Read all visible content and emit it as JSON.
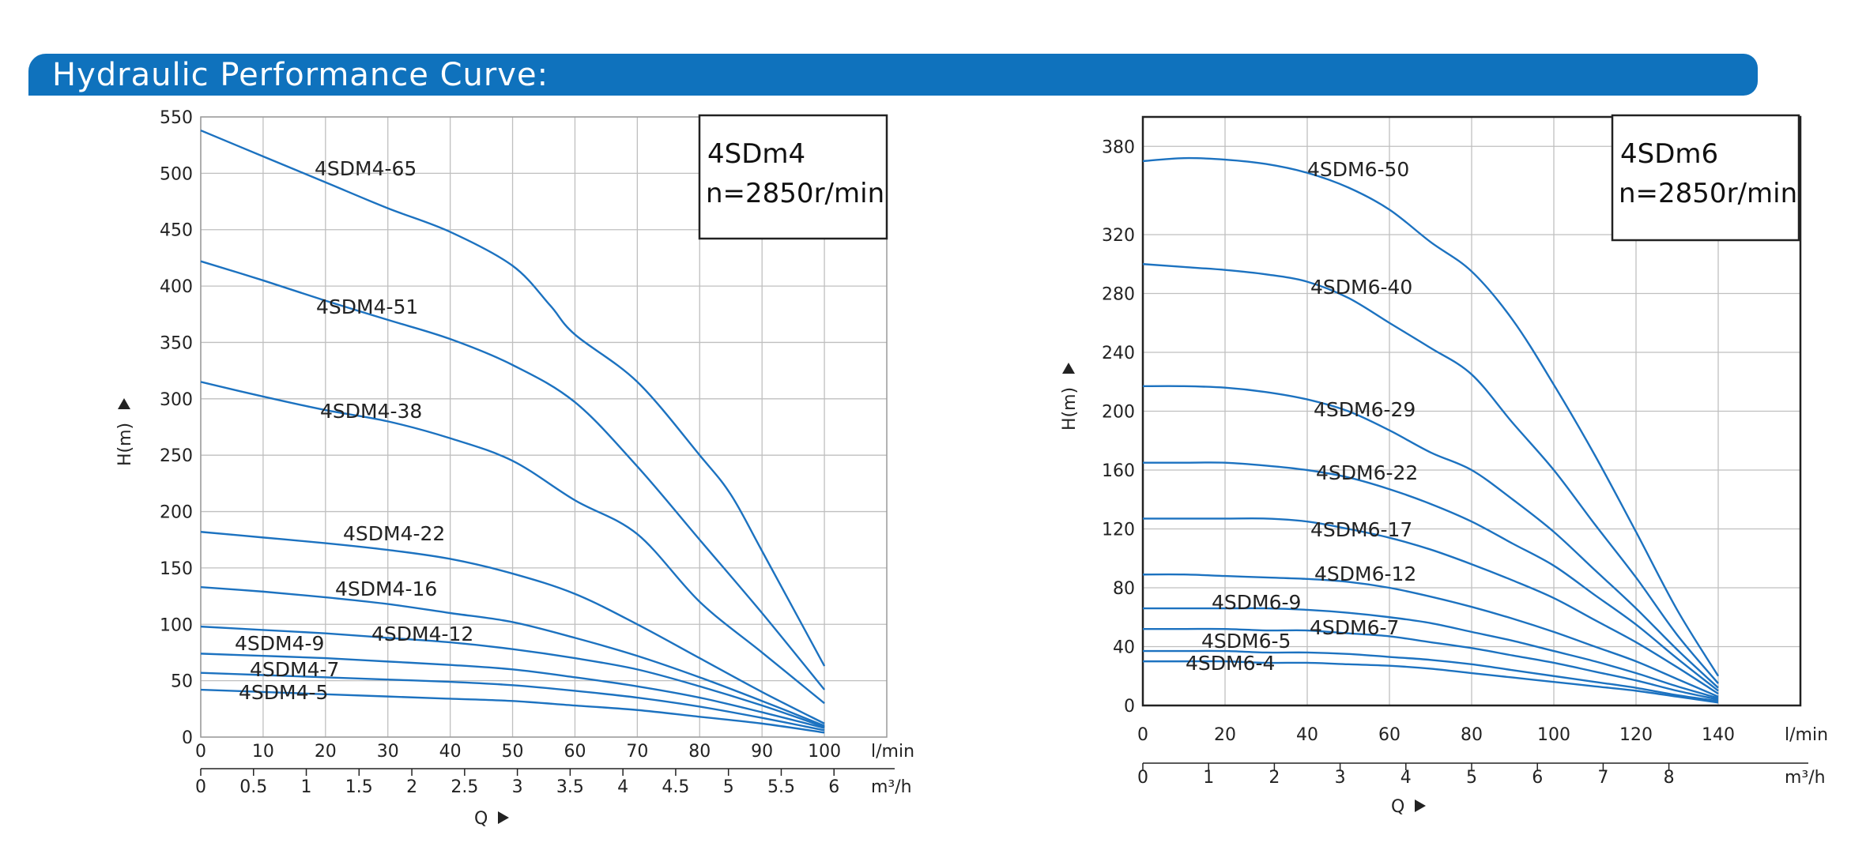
{
  "header": {
    "title": "Hydraulic Performance Curve:"
  },
  "colors": {
    "banner": "#0f72bd",
    "curve": "#1c72c0",
    "grid": "#bfbfbf",
    "frame": "#222222"
  },
  "chart_data": [
    {
      "type": "line",
      "title": "4SDm4",
      "subtitle": "n=2850r/min",
      "xlabel": "Q",
      "ylabel": "H(m)",
      "x_unit": "l/min",
      "x2_unit": "m³/h",
      "xlim": [
        0,
        110
      ],
      "ylim": [
        0,
        550
      ],
      "x_ticks": [
        "0",
        "10",
        "20",
        "30",
        "40",
        "50",
        "60",
        "70",
        "80",
        "90",
        "100"
      ],
      "x2_ticks": [
        "0",
        "0.5",
        "1",
        "1.5",
        "2",
        "2.5",
        "3",
        "3.5",
        "4",
        "4.5",
        "5",
        "5.5",
        "6"
      ],
      "y_ticks": [
        "0",
        "50",
        "100",
        "150",
        "200",
        "250",
        "300",
        "350",
        "400",
        "450",
        "500",
        "550"
      ],
      "grid": true,
      "series": [
        {
          "name": "4SDM4-65",
          "x": [
            0,
            10,
            20,
            30,
            40,
            50,
            56,
            60,
            70,
            80,
            85,
            90,
            100
          ],
          "y": [
            538,
            515,
            492,
            469,
            448,
            418,
            383,
            357,
            315,
            250,
            215,
            165,
            63
          ]
        },
        {
          "name": "4SDM4-51",
          "x": [
            0,
            10,
            20,
            30,
            40,
            50,
            60,
            70,
            80,
            90,
            100
          ],
          "y": [
            422,
            405,
            387,
            370,
            353,
            330,
            297,
            240,
            175,
            110,
            42
          ]
        },
        {
          "name": "4SDM4-38",
          "x": [
            0,
            10,
            20,
            30,
            40,
            50,
            60,
            70,
            80,
            90,
            100
          ],
          "y": [
            315,
            302,
            290,
            280,
            265,
            245,
            210,
            180,
            120,
            75,
            30
          ]
        },
        {
          "name": "4SDM4-22",
          "x": [
            0,
            10,
            20,
            30,
            40,
            50,
            60,
            70,
            80,
            90,
            100
          ],
          "y": [
            182,
            177,
            172,
            166,
            158,
            145,
            127,
            100,
            70,
            40,
            12
          ]
        },
        {
          "name": "4SDM4-16",
          "x": [
            0,
            10,
            20,
            30,
            40,
            50,
            60,
            70,
            80,
            90,
            100
          ],
          "y": [
            133,
            129,
            124,
            118,
            110,
            102,
            88,
            72,
            53,
            32,
            10
          ]
        },
        {
          "name": "4SDM4-12",
          "x": [
            0,
            10,
            20,
            30,
            40,
            50,
            60,
            70,
            80,
            90,
            100
          ],
          "y": [
            98,
            95,
            92,
            88,
            84,
            78,
            70,
            60,
            45,
            28,
            9
          ]
        },
        {
          "name": "4SDM4-9",
          "x": [
            0,
            10,
            20,
            30,
            40,
            50,
            60,
            70,
            80,
            90,
            100
          ],
          "y": [
            74,
            72,
            70,
            67,
            64,
            60,
            53,
            45,
            35,
            22,
            8
          ]
        },
        {
          "name": "4SDM4-7",
          "x": [
            0,
            10,
            20,
            30,
            40,
            50,
            60,
            70,
            80,
            90,
            100
          ],
          "y": [
            57,
            55,
            53,
            51,
            49,
            46,
            41,
            35,
            27,
            17,
            6
          ]
        },
        {
          "name": "4SDM4-5",
          "x": [
            0,
            10,
            20,
            30,
            40,
            50,
            60,
            70,
            80,
            90,
            100
          ],
          "y": [
            42,
            40,
            38,
            36,
            34,
            32,
            28,
            24,
            18,
            12,
            4
          ]
        }
      ]
    },
    {
      "type": "line",
      "title": "4SDm6",
      "subtitle": "n=2850r/min",
      "xlabel": "Q",
      "ylabel": "H(m)",
      "x_unit": "l/min",
      "x2_unit": "m³/h",
      "xlim": [
        0,
        160
      ],
      "ylim": [
        0,
        400
      ],
      "x_ticks": [
        "0",
        "20",
        "40",
        "60",
        "80",
        "100",
        "120",
        "140"
      ],
      "x2_ticks": [
        "0",
        "1",
        "2",
        "3",
        "4",
        "5",
        "6",
        "7",
        "8"
      ],
      "y_ticks": [
        "0",
        "40",
        "80",
        "120",
        "160",
        "200",
        "240",
        "280",
        "320",
        "380"
      ],
      "grid": true,
      "series": [
        {
          "name": "4SDM6-50",
          "x": [
            0,
            10,
            20,
            30,
            40,
            50,
            60,
            70,
            80,
            90,
            100,
            110,
            120,
            130,
            140
          ],
          "y": [
            370,
            372,
            371,
            368,
            362,
            352,
            337,
            315,
            295,
            262,
            218,
            170,
            118,
            65,
            20
          ]
        },
        {
          "name": "4SDM6-40",
          "x": [
            0,
            10,
            20,
            30,
            40,
            50,
            60,
            70,
            80,
            90,
            100,
            110,
            120,
            130,
            140
          ],
          "y": [
            300,
            298,
            296,
            293,
            288,
            277,
            260,
            243,
            225,
            192,
            160,
            123,
            87,
            48,
            15
          ]
        },
        {
          "name": "4SDM6-29",
          "x": [
            0,
            10,
            20,
            30,
            40,
            50,
            60,
            70,
            80,
            90,
            100,
            110,
            120,
            130,
            140
          ],
          "y": [
            217,
            217,
            216,
            213,
            208,
            200,
            187,
            172,
            160,
            140,
            118,
            92,
            66,
            38,
            12
          ]
        },
        {
          "name": "4SDM6-22",
          "x": [
            0,
            10,
            20,
            30,
            40,
            50,
            60,
            70,
            80,
            90,
            100,
            110,
            120,
            130,
            140
          ],
          "y": [
            165,
            165,
            165,
            163,
            160,
            155,
            147,
            137,
            125,
            110,
            95,
            75,
            55,
            32,
            10
          ]
        },
        {
          "name": "4SDM6-17",
          "x": [
            0,
            10,
            20,
            30,
            40,
            50,
            60,
            70,
            80,
            90,
            100,
            110,
            120,
            130,
            140
          ],
          "y": [
            127,
            127,
            127,
            127,
            125,
            120,
            114,
            106,
            96,
            85,
            73,
            58,
            43,
            26,
            8
          ]
        },
        {
          "name": "4SDM6-12",
          "x": [
            0,
            10,
            20,
            30,
            40,
            50,
            60,
            70,
            80,
            90,
            100,
            110,
            120,
            130,
            140
          ],
          "y": [
            89,
            89,
            88,
            87,
            86,
            84,
            80,
            74,
            67,
            59,
            50,
            40,
            30,
            18,
            6
          ]
        },
        {
          "name": "4SDM6-9",
          "x": [
            0,
            10,
            20,
            30,
            40,
            50,
            60,
            70,
            80,
            90,
            100,
            110,
            120,
            130,
            140
          ],
          "y": [
            66,
            66,
            66,
            66,
            65,
            63,
            60,
            56,
            50,
            44,
            37,
            30,
            22,
            13,
            5
          ]
        },
        {
          "name": "4SDM6-7",
          "x": [
            0,
            10,
            20,
            30,
            40,
            50,
            60,
            70,
            80,
            90,
            100,
            110,
            120,
            130,
            140
          ],
          "y": [
            52,
            52,
            52,
            51,
            51,
            49,
            47,
            43,
            39,
            34,
            29,
            23,
            17,
            10,
            4
          ]
        },
        {
          "name": "4SDM6-5",
          "x": [
            0,
            10,
            20,
            30,
            40,
            50,
            60,
            70,
            80,
            90,
            100,
            110,
            120,
            130,
            140
          ],
          "y": [
            37,
            37,
            37,
            36,
            36,
            35,
            33,
            31,
            28,
            24,
            20,
            16,
            12,
            7,
            3
          ]
        },
        {
          "name": "4SDM6-4",
          "x": [
            0,
            10,
            20,
            30,
            40,
            50,
            60,
            70,
            80,
            90,
            100,
            110,
            120,
            130,
            140
          ],
          "y": [
            30,
            30,
            30,
            29,
            29,
            28,
            27,
            25,
            22,
            19,
            16,
            13,
            10,
            6,
            2
          ]
        }
      ]
    }
  ]
}
